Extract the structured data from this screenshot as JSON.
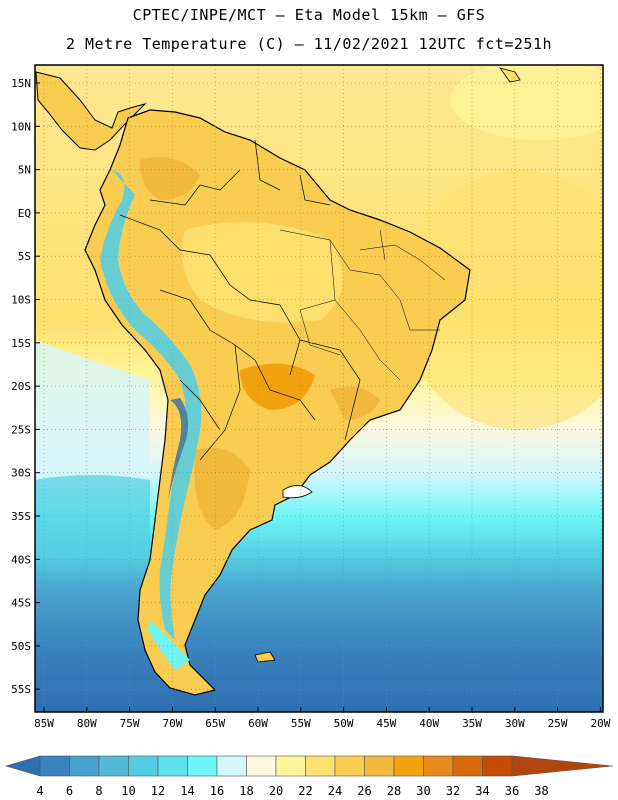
{
  "header": {
    "line1": "CPTEC/INPE/MCT –  Eta Model 15km – GFS",
    "line2": "2 Metre Temperature (C) – 11/02/2021 12UTC fct=251h"
  },
  "map": {
    "lat_labels": [
      "15N",
      "10N",
      "5N",
      "EQ",
      "5S",
      "10S",
      "15S",
      "20S",
      "25S",
      "30S",
      "35S",
      "40S",
      "45S",
      "50S",
      "55S"
    ],
    "lon_labels": [
      "85W",
      "80W",
      "75W",
      "70W",
      "65W",
      "60W",
      "55W",
      "50W",
      "45W",
      "40W",
      "35W",
      "30W",
      "25W",
      "20W"
    ]
  },
  "colorbar": {
    "labels": [
      "4",
      "6",
      "8",
      "10",
      "12",
      "14",
      "16",
      "18",
      "20",
      "22",
      "24",
      "26",
      "28",
      "30",
      "32",
      "34",
      "36",
      "38"
    ],
    "colors": [
      "#2e6fb0",
      "#3a84bf",
      "#48a0cc",
      "#54b8d8",
      "#55cde0",
      "#5fe0ea",
      "#6df5f8",
      "#d5f6fb",
      "#fff8df",
      "#fff59a",
      "#fde170",
      "#f8cd52",
      "#f0b93c",
      "#f0a20f",
      "#e88a1c",
      "#d96a0a",
      "#c44d05",
      "#b2450d"
    ]
  }
}
